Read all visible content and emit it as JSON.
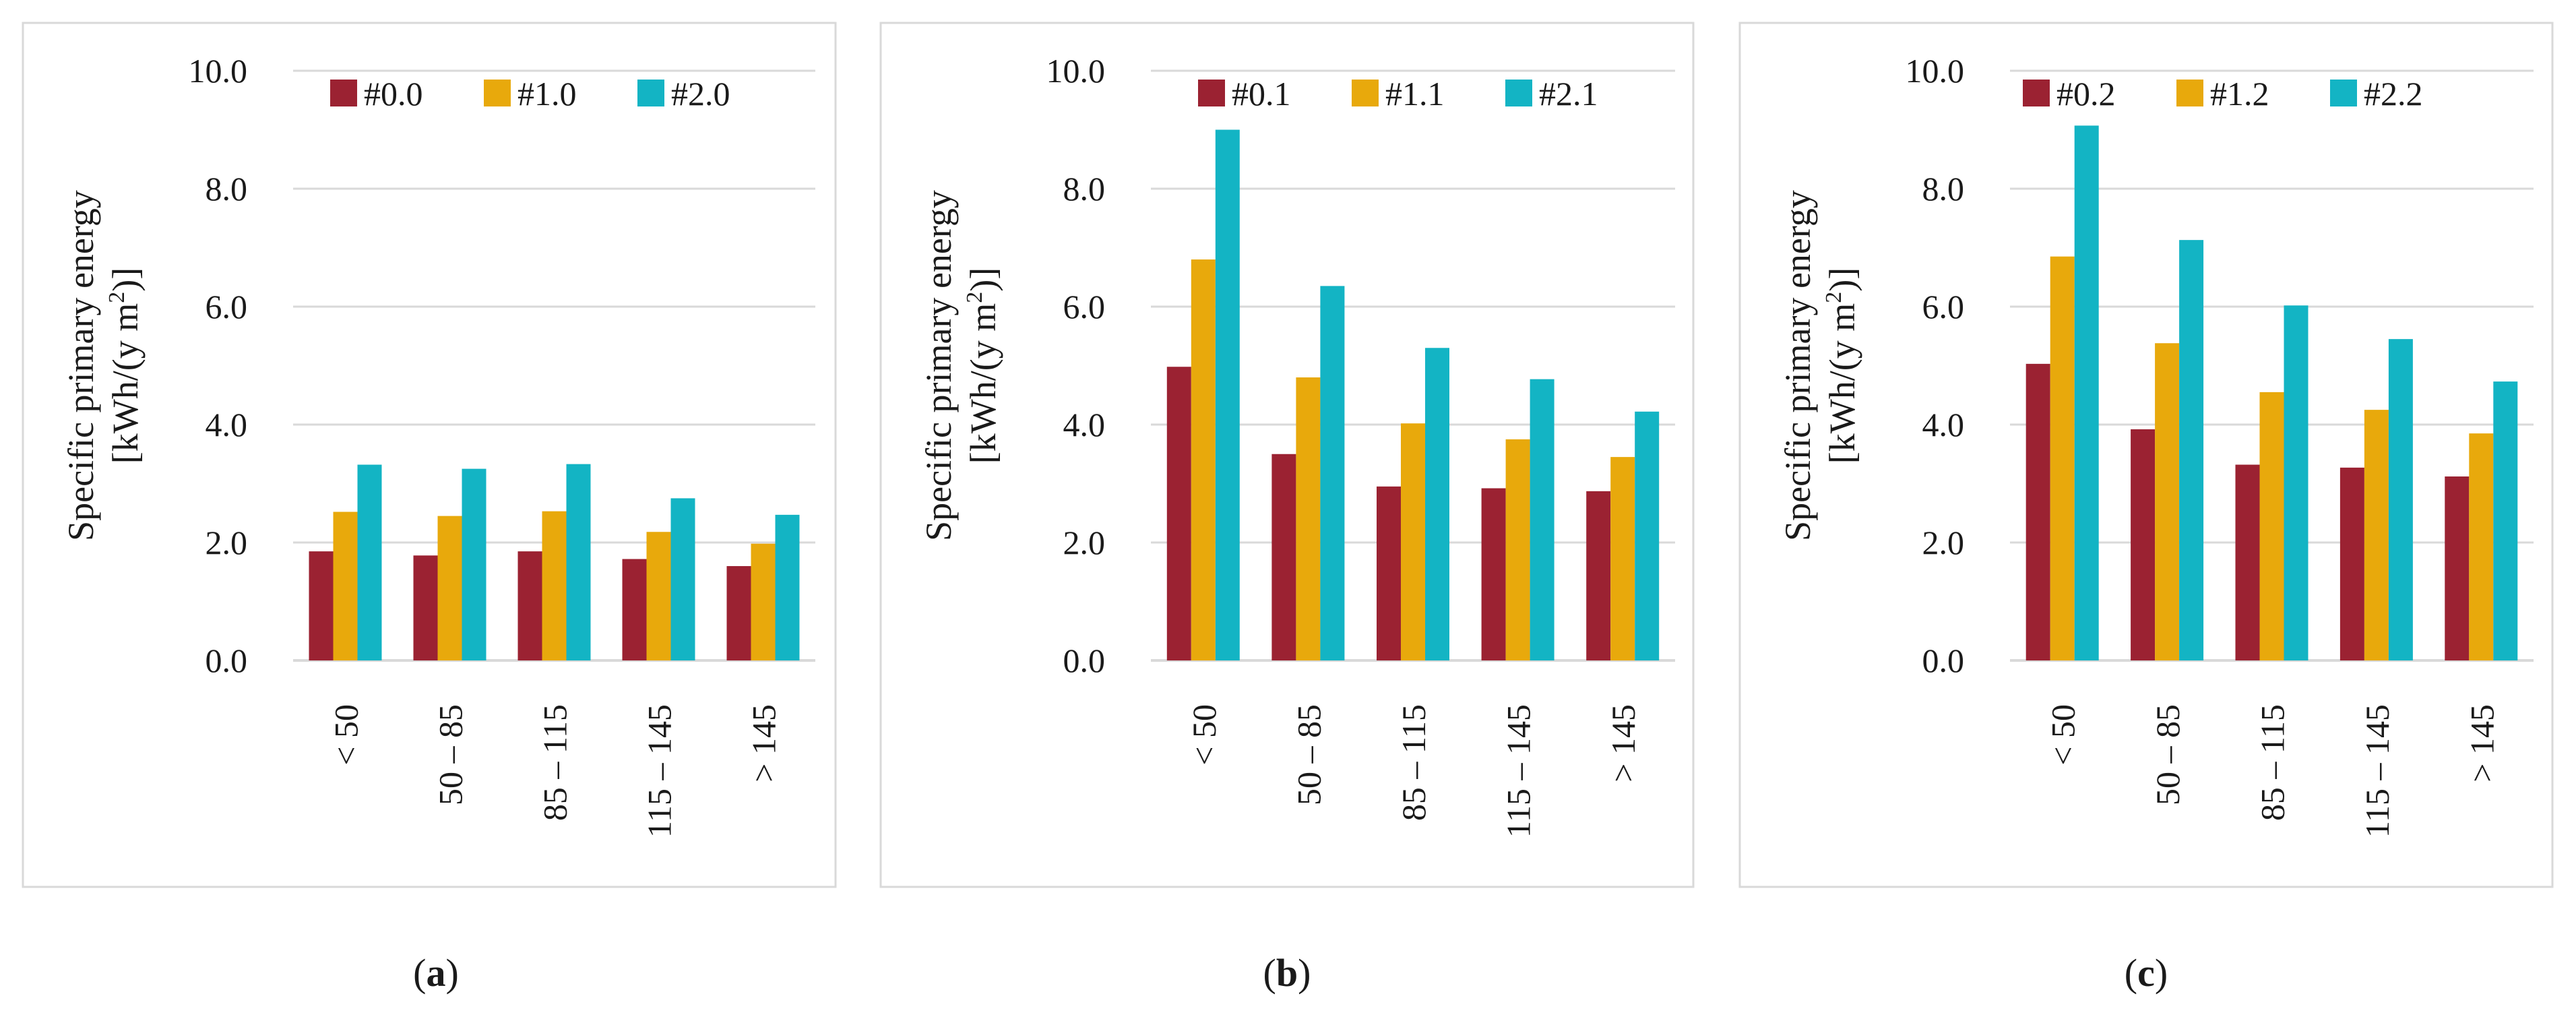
{
  "chart_data": [
    {
      "type": "bar",
      "caption": "a",
      "ylabel_line1": "Specific primary energy",
      "ylabel_line2": "[kWh/(y m",
      "ylabel_sup": "2",
      "ylabel_line2_end": ")]",
      "categories": [
        "< 50",
        "50 – 85",
        "85 – 115",
        "115 – 145",
        "> 145"
      ],
      "ylim": [
        0,
        10
      ],
      "yticks": [
        "0.0",
        "2.0",
        "4.0",
        "6.0",
        "8.0",
        "10.0"
      ],
      "grid": true,
      "legend_position": "top",
      "series": [
        {
          "name": "#0.0",
          "values": [
            1.85,
            1.78,
            1.85,
            1.72,
            1.6
          ]
        },
        {
          "name": "#1.0",
          "values": [
            2.52,
            2.45,
            2.53,
            2.18,
            1.98
          ]
        },
        {
          "name": "#2.0",
          "values": [
            3.32,
            3.25,
            3.33,
            2.75,
            2.47
          ]
        }
      ]
    },
    {
      "type": "bar",
      "caption": "b",
      "ylabel_line1": "Specific primary energy",
      "ylabel_line2": "[kWh/(y m",
      "ylabel_sup": "2",
      "ylabel_line2_end": ")]",
      "categories": [
        "< 50",
        "50 – 85",
        "85 – 115",
        "115 – 145",
        "> 145"
      ],
      "ylim": [
        0,
        10
      ],
      "yticks": [
        "0.0",
        "2.0",
        "4.0",
        "6.0",
        "8.0",
        "10.0"
      ],
      "grid": true,
      "legend_position": "top",
      "series": [
        {
          "name": "#0.1",
          "values": [
            4.98,
            3.5,
            2.95,
            2.92,
            2.87
          ]
        },
        {
          "name": "#1.1",
          "values": [
            6.8,
            4.8,
            4.02,
            3.75,
            3.45
          ]
        },
        {
          "name": "#2.1",
          "values": [
            9.0,
            6.35,
            5.3,
            4.77,
            4.22
          ]
        }
      ]
    },
    {
      "type": "bar",
      "caption": "c",
      "ylabel_line1": "Specific primary energy",
      "ylabel_line2": "[kWh/(y m",
      "ylabel_sup": "2",
      "ylabel_line2_end": ")]",
      "categories": [
        "< 50",
        "50 – 85",
        "85 – 115",
        "115 – 145",
        "> 145"
      ],
      "ylim": [
        0,
        10
      ],
      "yticks": [
        "0.0",
        "2.0",
        "4.0",
        "6.0",
        "8.0",
        "10.0"
      ],
      "grid": true,
      "legend_position": "top",
      "series": [
        {
          "name": "#0.2",
          "values": [
            5.03,
            3.92,
            3.32,
            3.27,
            3.12
          ]
        },
        {
          "name": "#1.2",
          "values": [
            6.85,
            5.38,
            4.55,
            4.25,
            3.85
          ]
        },
        {
          "name": "#2.2",
          "values": [
            9.07,
            7.13,
            6.02,
            5.45,
            4.73
          ]
        }
      ]
    }
  ],
  "colors": {
    "series": [
      "#9b2232",
      "#e8a90c",
      "#13b4c4"
    ],
    "grid": "#d9d9d9",
    "frame": "#d9d9d9"
  }
}
